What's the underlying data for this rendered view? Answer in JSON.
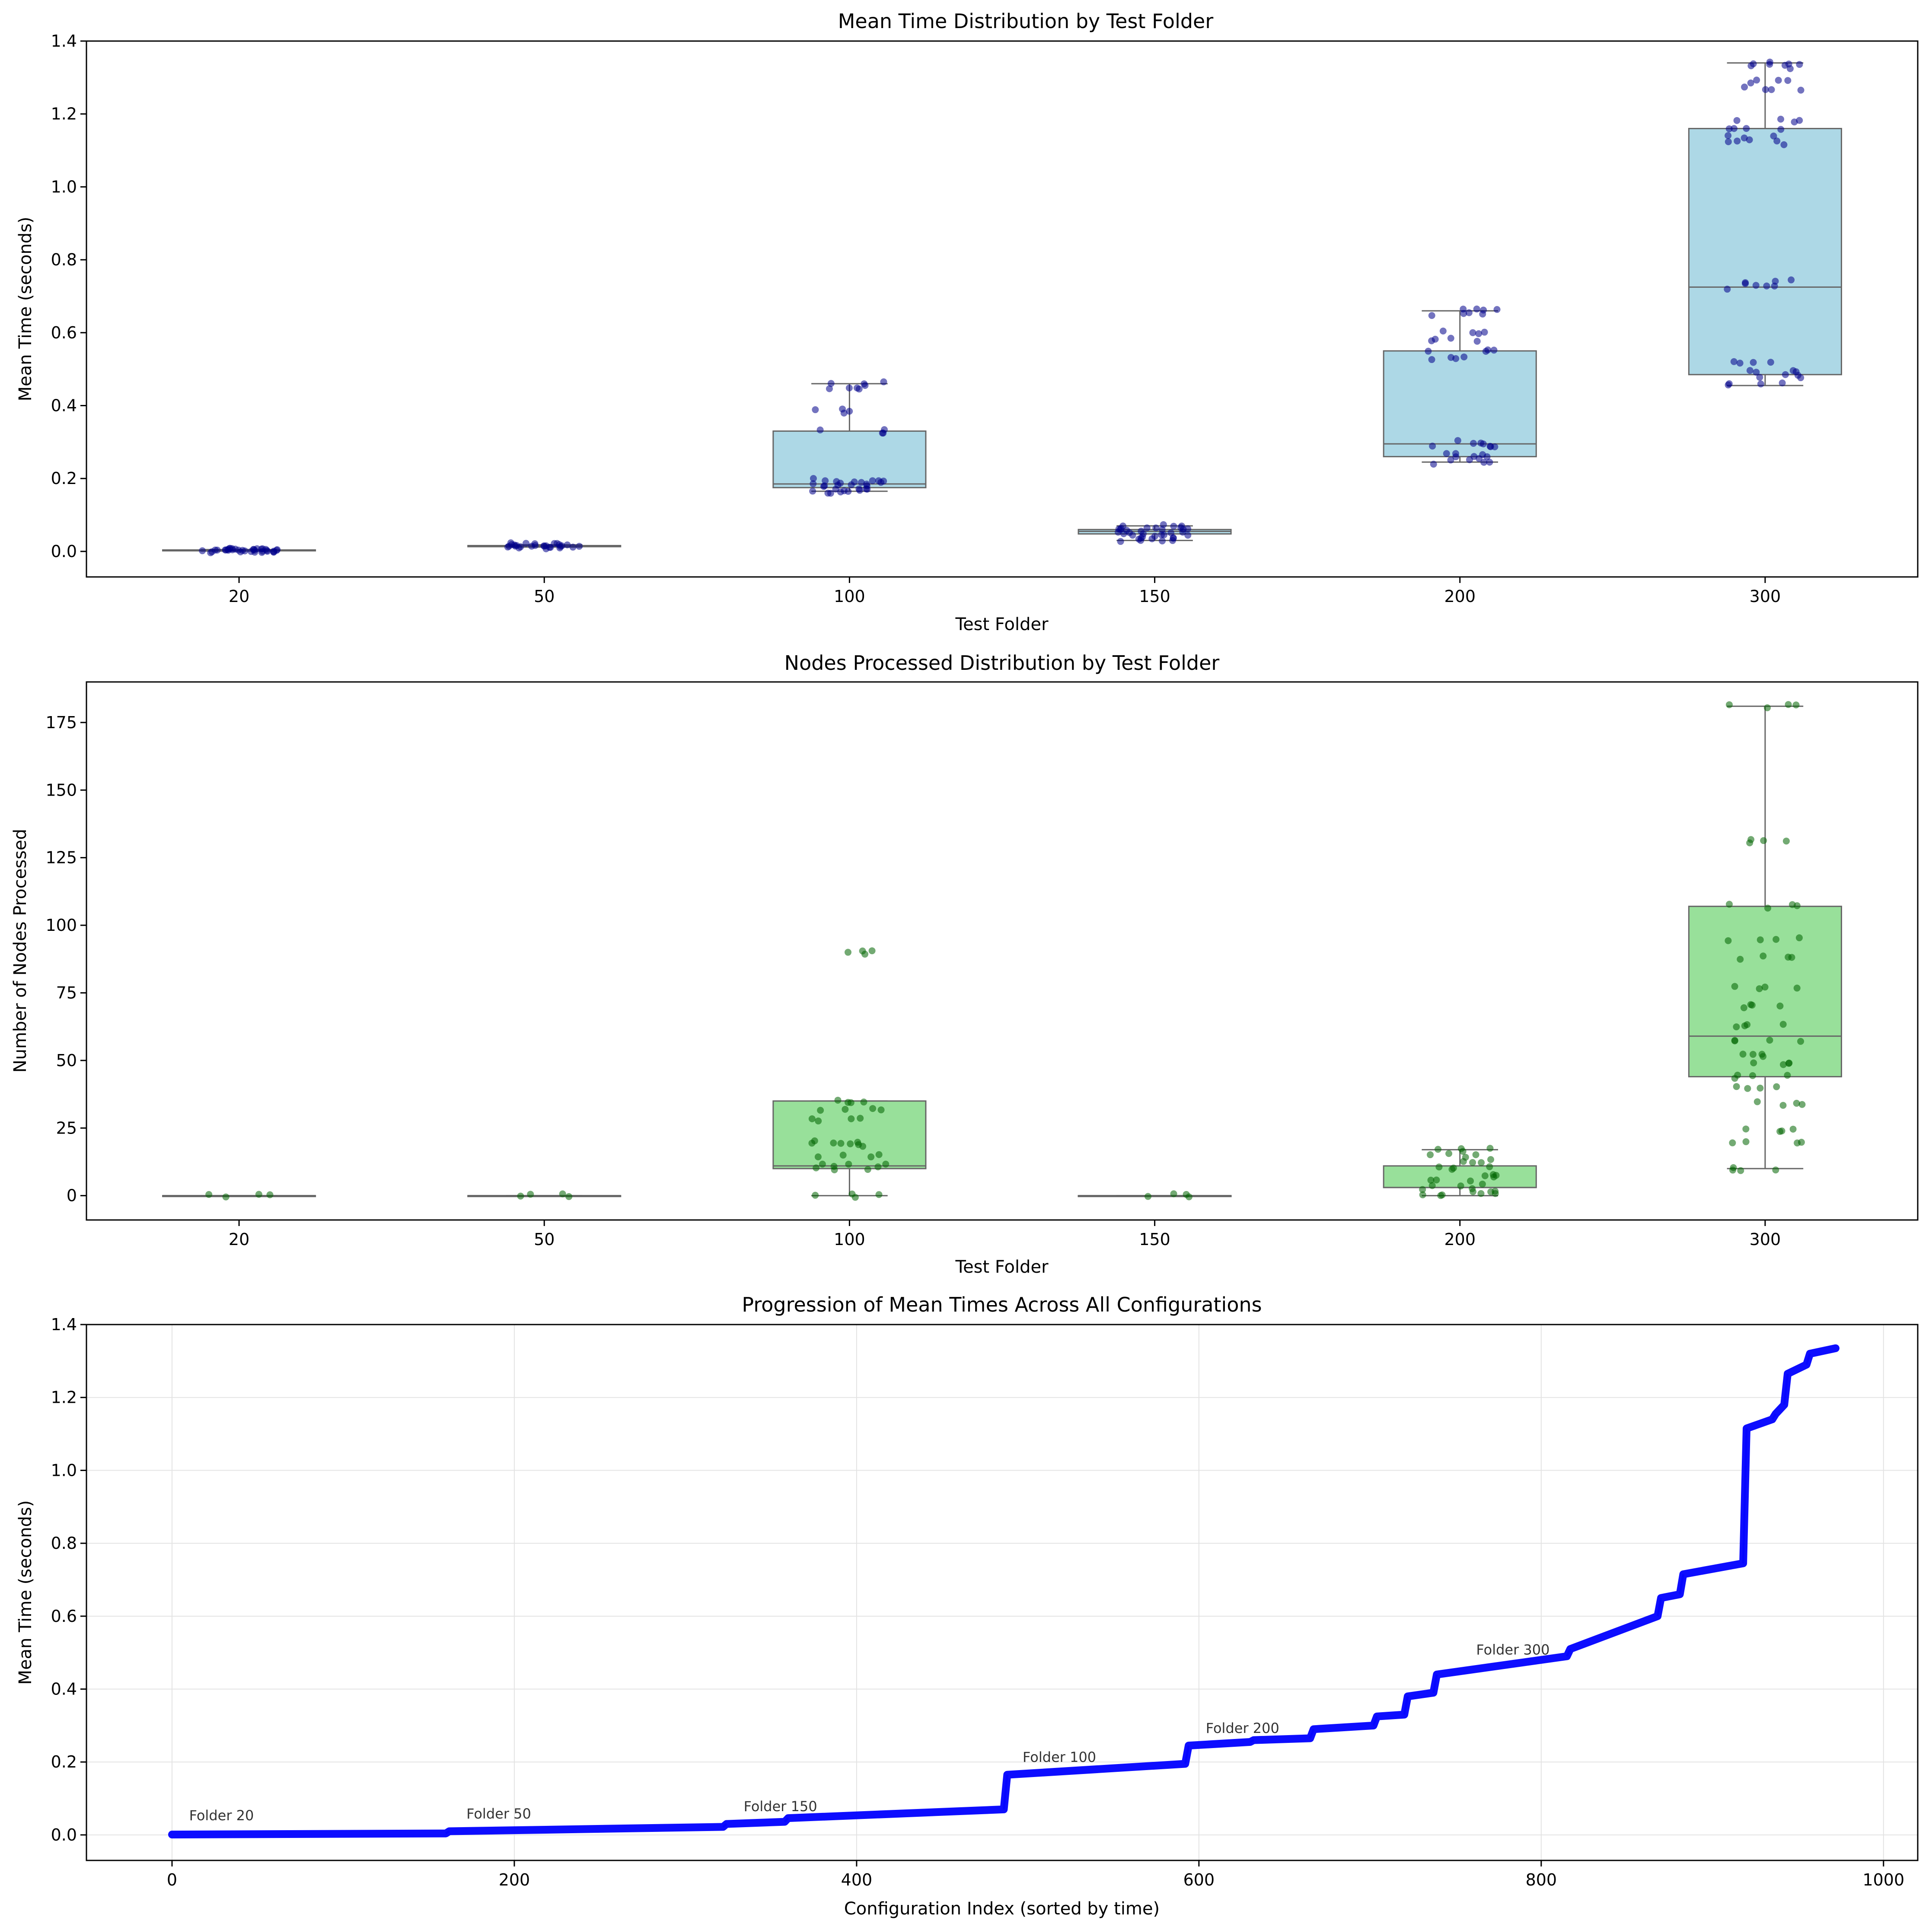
{
  "chart_data": [
    {
      "type": "box",
      "title": "Mean Time Distribution by Test Folder",
      "xlabel": "Test Folder",
      "ylabel": "Mean Time (seconds)",
      "ylim": [
        -0.07,
        1.4
      ],
      "yticks": [
        0.0,
        0.2,
        0.4,
        0.6,
        0.8,
        1.0,
        1.2,
        1.4
      ],
      "ytick_labels": [
        "0.0",
        "0.2",
        "0.4",
        "0.6",
        "0.8",
        "1.0",
        "1.2",
        "1.4"
      ],
      "categories": [
        "20",
        "50",
        "100",
        "150",
        "200",
        "300"
      ],
      "box_color": "#add8e6",
      "point_color": "#00008b",
      "boxes": [
        {
          "whisker_low": 0.001,
          "q1": 0.002,
          "median": 0.003,
          "q3": 0.004,
          "whisker_high": 0.005,
          "points": [
            0.001,
            0.002,
            0.002,
            0.003,
            0.003,
            0.003,
            0.004,
            0.004,
            0.005
          ]
        },
        {
          "whisker_low": 0.012,
          "q1": 0.013,
          "median": 0.015,
          "q3": 0.016,
          "whisker_high": 0.018,
          "points": [
            0.012,
            0.013,
            0.014,
            0.015,
            0.016,
            0.017,
            0.018
          ]
        },
        {
          "whisker_low": 0.165,
          "q1": 0.175,
          "median": 0.185,
          "q3": 0.33,
          "whisker_high": 0.46,
          "points": [
            0.165,
            0.17,
            0.175,
            0.18,
            0.185,
            0.19,
            0.195,
            0.33,
            0.385,
            0.45,
            0.46
          ]
        },
        {
          "whisker_low": 0.03,
          "q1": 0.048,
          "median": 0.055,
          "q3": 0.06,
          "whisker_high": 0.07,
          "points": [
            0.03,
            0.035,
            0.04,
            0.045,
            0.05,
            0.055,
            0.06,
            0.065,
            0.07
          ]
        },
        {
          "whisker_low": 0.245,
          "q1": 0.26,
          "median": 0.295,
          "q3": 0.55,
          "whisker_high": 0.66,
          "points": [
            0.245,
            0.255,
            0.265,
            0.29,
            0.3,
            0.53,
            0.55,
            0.58,
            0.6,
            0.65,
            0.66
          ]
        },
        {
          "whisker_low": 0.455,
          "q1": 0.485,
          "median": 0.725,
          "q3": 1.16,
          "whisker_high": 1.34,
          "points": [
            0.46,
            0.48,
            0.495,
            0.52,
            0.725,
            0.74,
            1.12,
            1.135,
            1.16,
            1.18,
            1.27,
            1.29,
            1.33,
            1.34
          ]
        }
      ]
    },
    {
      "type": "box",
      "title": "Nodes Processed Distribution by Test Folder",
      "xlabel": "Test Folder",
      "ylabel": "Number of Nodes Processed",
      "ylim": [
        -9,
        190
      ],
      "yticks": [
        0,
        25,
        50,
        75,
        100,
        125,
        150,
        175
      ],
      "ytick_labels": [
        "0",
        "25",
        "50",
        "75",
        "100",
        "125",
        "150",
        "175"
      ],
      "categories": [
        "20",
        "50",
        "100",
        "150",
        "200",
        "300"
      ],
      "box_color": "#98e09a",
      "point_color": "#006400",
      "boxes": [
        {
          "whisker_low": 0,
          "q1": 0,
          "median": 0,
          "q3": 0,
          "whisker_high": 0,
          "points": [
            0
          ]
        },
        {
          "whisker_low": 0,
          "q1": 0,
          "median": 0,
          "q3": 0,
          "whisker_high": 0,
          "points": [
            0
          ]
        },
        {
          "whisker_low": 0,
          "q1": 10,
          "median": 11,
          "q3": 35,
          "whisker_high": 35,
          "points": [
            0,
            10,
            11,
            15,
            19,
            20,
            28,
            32,
            35,
            90
          ]
        },
        {
          "whisker_low": 0,
          "q1": 0,
          "median": 0,
          "q3": 0,
          "whisker_high": 0,
          "points": [
            0
          ]
        },
        {
          "whisker_low": 0,
          "q1": 3,
          "median": 3,
          "q3": 11,
          "whisker_high": 17,
          "points": [
            0,
            1,
            3,
            5,
            7,
            10,
            13,
            15,
            17
          ]
        },
        {
          "whisker_low": 10,
          "q1": 44,
          "median": 59,
          "q3": 107,
          "whisker_high": 181,
          "points": [
            10,
            20,
            24,
            34,
            40,
            44,
            49,
            52,
            57,
            63,
            70,
            77,
            88,
            95,
            107,
            131,
            181
          ]
        }
      ]
    },
    {
      "type": "line",
      "title": "Progression of Mean Times Across All Configurations",
      "xlabel": "Configuration Index (sorted by time)",
      "ylabel": "Mean Time (seconds)",
      "xlim": [
        -50,
        1020
      ],
      "ylim": [
        -0.07,
        1.4
      ],
      "xticks": [
        0,
        200,
        400,
        600,
        800,
        1000
      ],
      "xtick_labels": [
        "0",
        "200",
        "400",
        "600",
        "800",
        "1000"
      ],
      "yticks": [
        0.0,
        0.2,
        0.4,
        0.6,
        0.8,
        1.0,
        1.2,
        1.4
      ],
      "ytick_labels": [
        "0.0",
        "0.2",
        "0.4",
        "0.6",
        "0.8",
        "1.0",
        "1.2",
        "1.4"
      ],
      "grid": true,
      "line_color": "#0000ff",
      "x": [
        0,
        160,
        162,
        322,
        324,
        358,
        360,
        486,
        488,
        592,
        594,
        630,
        632,
        665,
        667,
        702,
        704,
        720,
        722,
        737,
        739,
        815,
        817,
        868,
        870,
        881,
        883,
        918,
        920,
        935,
        937,
        942,
        944,
        955,
        957,
        972
      ],
      "y": [
        0.001,
        0.004,
        0.01,
        0.022,
        0.03,
        0.036,
        0.046,
        0.07,
        0.165,
        0.195,
        0.245,
        0.255,
        0.26,
        0.265,
        0.29,
        0.3,
        0.325,
        0.33,
        0.38,
        0.39,
        0.44,
        0.49,
        0.51,
        0.6,
        0.65,
        0.66,
        0.715,
        0.745,
        1.115,
        1.14,
        1.155,
        1.18,
        1.265,
        1.29,
        1.32,
        1.335
      ],
      "annotations": [
        {
          "text": "Folder 20",
          "x": 10,
          "y": 0.04
        },
        {
          "text": "Folder 50",
          "x": 172,
          "y": 0.045
        },
        {
          "text": "Folder 150",
          "x": 334,
          "y": 0.065
        },
        {
          "text": "Folder 100",
          "x": 497,
          "y": 0.2
        },
        {
          "text": "Folder 200",
          "x": 604,
          "y": 0.28
        },
        {
          "text": "Folder 300",
          "x": 762,
          "y": 0.495
        }
      ]
    }
  ]
}
